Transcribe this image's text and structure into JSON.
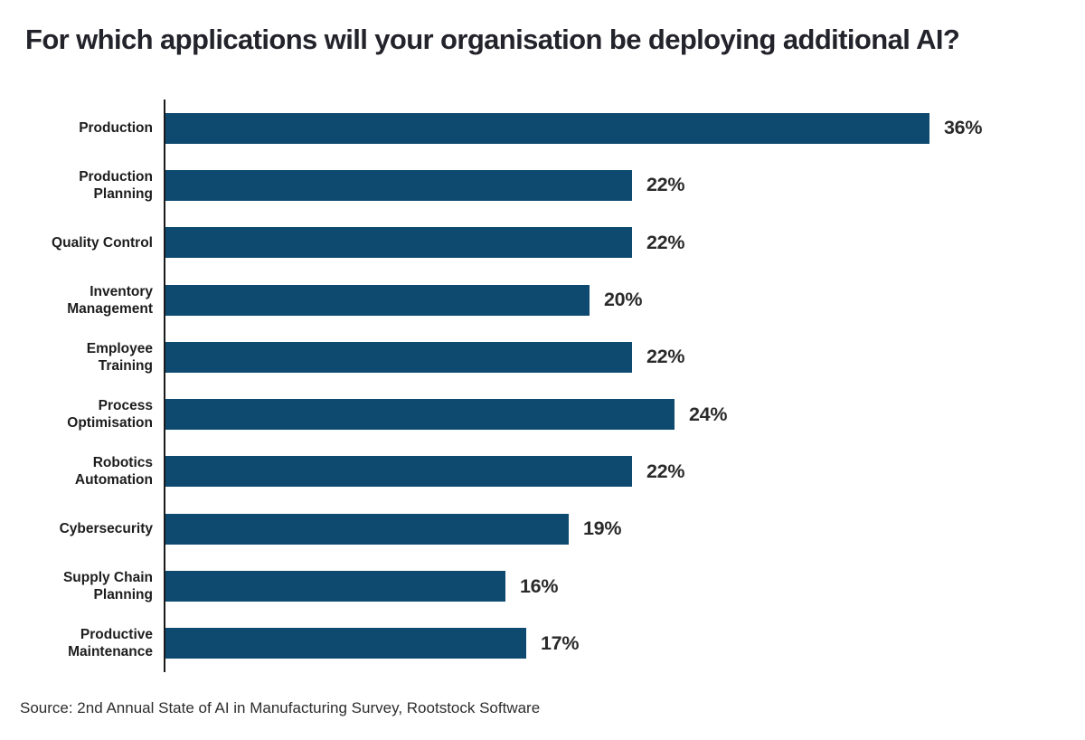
{
  "title": "For which applications will your organisation be deploying additional AI?",
  "source": "Source: 2nd Annual State of AI in Manufacturing Survey, Rootstock Software",
  "colors": {
    "bar": "#0e4a70",
    "title_text": "#23232b",
    "axis": "#1a1a1a",
    "background": "#ffffff"
  },
  "chart_data": {
    "type": "bar",
    "orientation": "horizontal",
    "title": "For which applications will your organisation be deploying additional AI?",
    "categories": [
      "Production",
      "Production Planning",
      "Quality Control",
      "Inventory Management",
      "Employee Training",
      "Process Optimisation",
      "Robotics Automation",
      "Cybersecurity",
      "Supply Chain Planning",
      "Productive Maintenance"
    ],
    "label_lines": [
      [
        "Production"
      ],
      [
        "Production",
        "Planning"
      ],
      [
        "Quality Control"
      ],
      [
        "Inventory",
        "Management"
      ],
      [
        "Employee",
        "Training"
      ],
      [
        "Process",
        "Optimisation"
      ],
      [
        "Robotics",
        "Automation"
      ],
      [
        "Cybersecurity"
      ],
      [
        "Supply Chain",
        "Planning"
      ],
      [
        "Productive",
        "Maintenance"
      ]
    ],
    "values": [
      36,
      22,
      22,
      20,
      22,
      24,
      22,
      19,
      16,
      17
    ],
    "value_suffix": "%",
    "value_labels": [
      "36%",
      "22%",
      "22%",
      "20%",
      "22%",
      "24%",
      "22%",
      "19%",
      "16%",
      "17%"
    ],
    "xlabel": "",
    "ylabel": "",
    "xlim": [
      0,
      36
    ],
    "grid": false,
    "legend": false,
    "data_labels": "end-of-bar"
  }
}
